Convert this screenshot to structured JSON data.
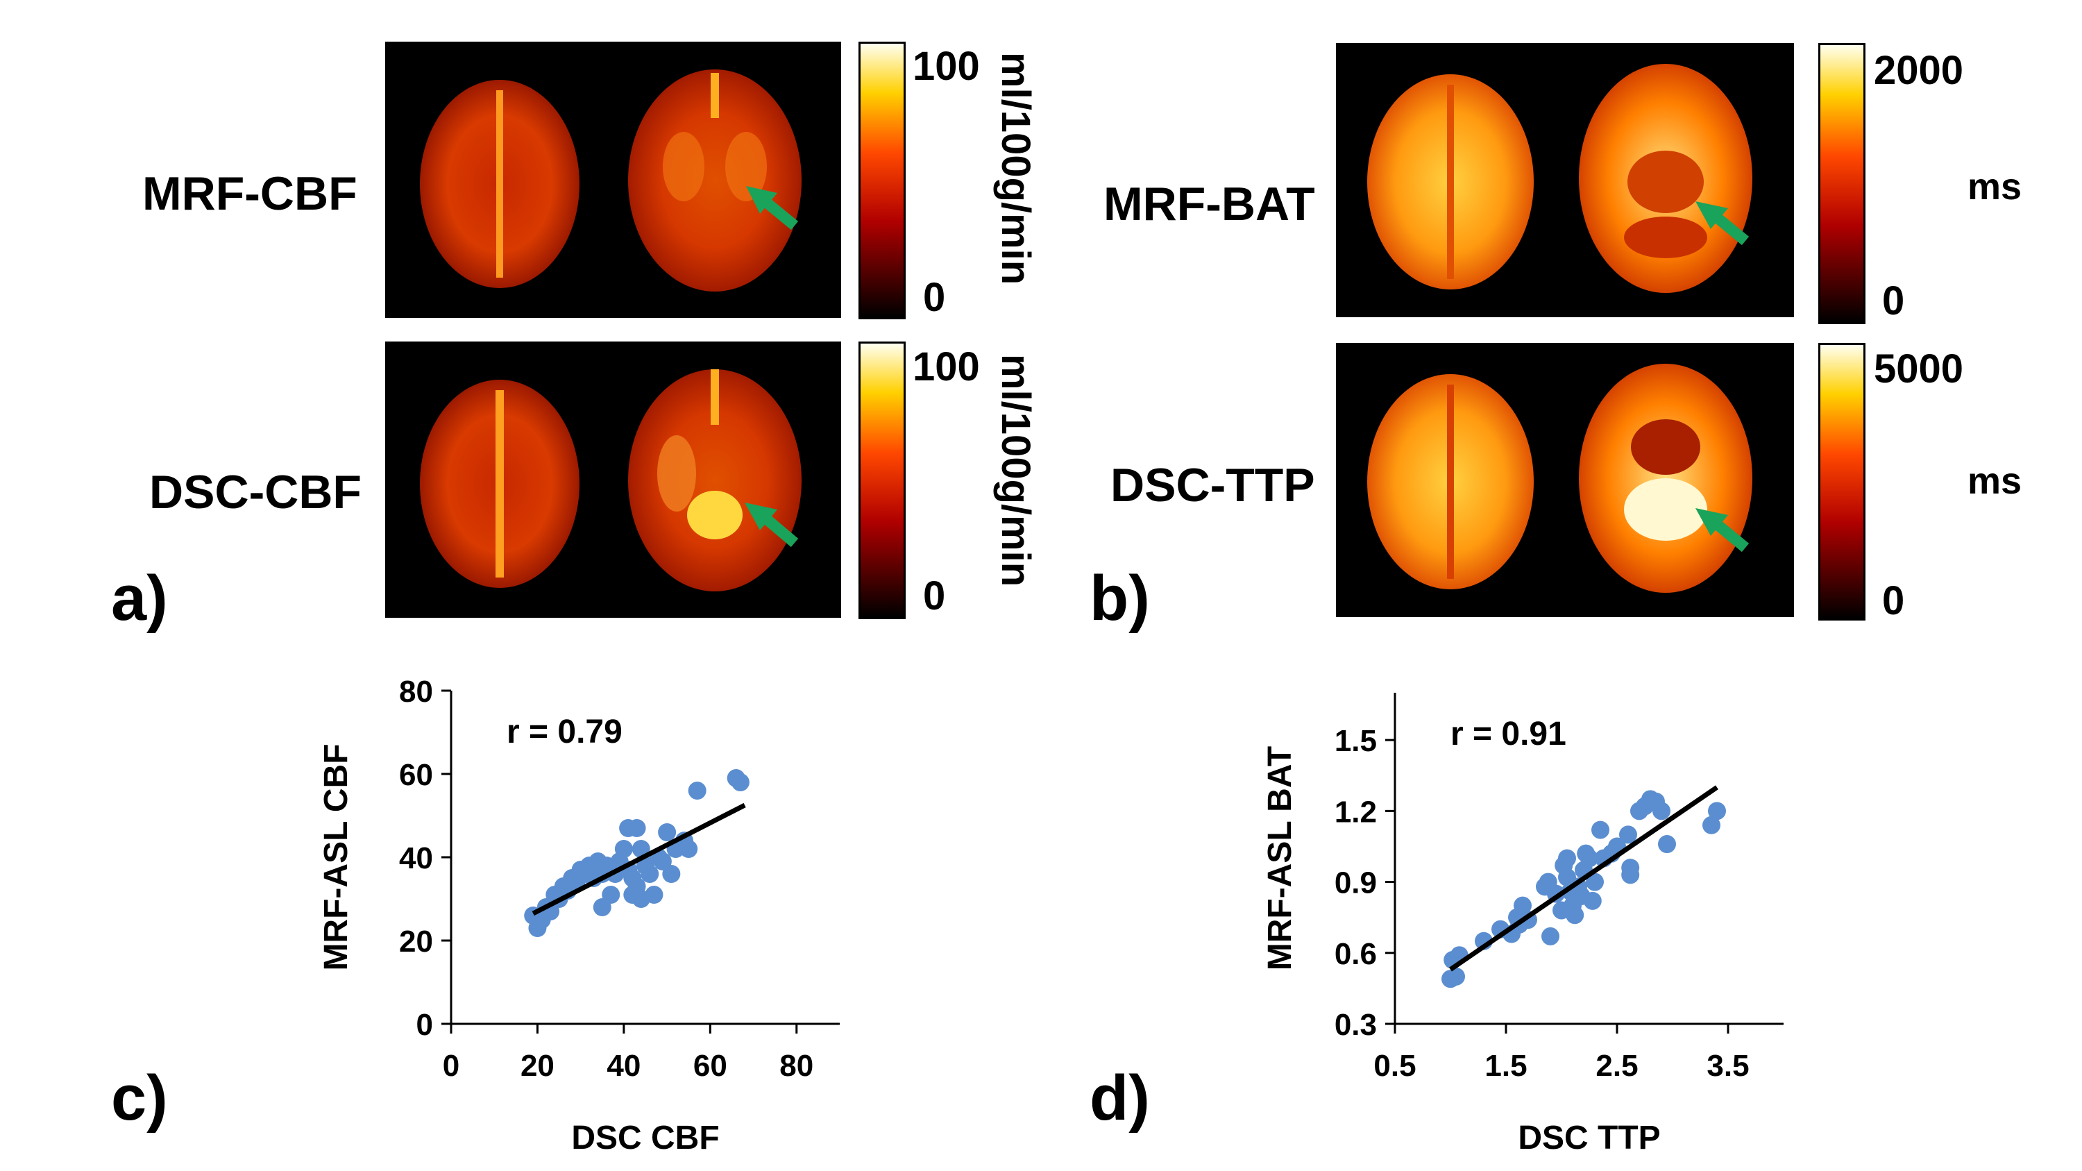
{
  "panel_a": {
    "label": "a)",
    "rows": [
      {
        "label": "MRF-CBF",
        "cb_max": "100",
        "cb_min": "0",
        "unit": "ml/100g/min"
      },
      {
        "label": "DSC-CBF",
        "cb_max": "100",
        "cb_min": "0",
        "unit": "ml/100g/min"
      }
    ]
  },
  "panel_b": {
    "label": "b)",
    "rows": [
      {
        "label": "MRF-BAT",
        "cb_max": "2000",
        "cb_min": "0",
        "unit": "ms"
      },
      {
        "label": "DSC-TTP",
        "cb_max": "5000",
        "cb_min": "0",
        "unit": "ms"
      }
    ]
  },
  "panel_c": {
    "label": "c)"
  },
  "panel_d": {
    "label": "d)"
  },
  "colors": {
    "point": "#5b8ed0",
    "arrow": "#1aa35a",
    "fit": "#000000"
  },
  "chart_data": [
    {
      "type": "scatter",
      "panel": "c",
      "xlabel": "DSC CBF",
      "ylabel": "MRF-ASL CBF",
      "annotation": "r = 0.79",
      "xlim": [
        0,
        90
      ],
      "ylim": [
        0,
        80
      ],
      "xticks": [
        0,
        20,
        40,
        60,
        80
      ],
      "yticks": [
        0,
        20,
        40,
        60,
        80
      ],
      "fit": {
        "x0": 19,
        "y0": 26.5,
        "x1": 68,
        "y1": 52.5
      },
      "points": [
        [
          19,
          26
        ],
        [
          20,
          23
        ],
        [
          21,
          25
        ],
        [
          22,
          28
        ],
        [
          23,
          27
        ],
        [
          24,
          31
        ],
        [
          25,
          30
        ],
        [
          26,
          33
        ],
        [
          27,
          32
        ],
        [
          28,
          35
        ],
        [
          29,
          34
        ],
        [
          30,
          37
        ],
        [
          31,
          36
        ],
        [
          32,
          38
        ],
        [
          33,
          35
        ],
        [
          34,
          39
        ],
        [
          35,
          36
        ],
        [
          35,
          28
        ],
        [
          36,
          38
        ],
        [
          37,
          31
        ],
        [
          38,
          36
        ],
        [
          39,
          39
        ],
        [
          40,
          42
        ],
        [
          41,
          47
        ],
        [
          41,
          37
        ],
        [
          42,
          35
        ],
        [
          42,
          31
        ],
        [
          43,
          33
        ],
        [
          43,
          47
        ],
        [
          44,
          42
        ],
        [
          44,
          30
        ],
        [
          45,
          38
        ],
        [
          46,
          36
        ],
        [
          47,
          31
        ],
        [
          48,
          40
        ],
        [
          49,
          39
        ],
        [
          50,
          46
        ],
        [
          51,
          36
        ],
        [
          52,
          42
        ],
        [
          54,
          44
        ],
        [
          55,
          42
        ],
        [
          57,
          56
        ],
        [
          66,
          59
        ],
        [
          67,
          58
        ]
      ]
    },
    {
      "type": "scatter",
      "panel": "d",
      "xlabel": "DSC TTP",
      "ylabel": "MRF-ASL BAT",
      "annotation": "r = 0.91",
      "xlim": [
        0.5,
        4.0
      ],
      "ylim": [
        0.3,
        1.7
      ],
      "xticks": [
        0.5,
        1.5,
        2.5,
        3.5
      ],
      "yticks": [
        0.3,
        0.6,
        0.9,
        1.2,
        1.5
      ],
      "fit": {
        "x0": 1.0,
        "y0": 0.53,
        "x1": 3.4,
        "y1": 1.3
      },
      "points": [
        [
          1.0,
          0.49
        ],
        [
          1.02,
          0.57
        ],
        [
          1.05,
          0.5
        ],
        [
          1.08,
          0.59
        ],
        [
          1.3,
          0.65
        ],
        [
          1.45,
          0.7
        ],
        [
          1.55,
          0.68
        ],
        [
          1.6,
          0.75
        ],
        [
          1.62,
          0.72
        ],
        [
          1.65,
          0.8
        ],
        [
          1.7,
          0.74
        ],
        [
          1.85,
          0.88
        ],
        [
          1.88,
          0.9
        ],
        [
          1.9,
          0.67
        ],
        [
          1.95,
          0.85
        ],
        [
          2.0,
          0.78
        ],
        [
          2.02,
          0.97
        ],
        [
          2.05,
          1.0
        ],
        [
          2.05,
          0.92
        ],
        [
          2.08,
          0.86
        ],
        [
          2.1,
          0.8
        ],
        [
          2.12,
          0.76
        ],
        [
          2.15,
          0.88
        ],
        [
          2.18,
          0.84
        ],
        [
          2.2,
          0.95
        ],
        [
          2.22,
          1.02
        ],
        [
          2.25,
          1.0
        ],
        [
          2.28,
          0.82
        ],
        [
          2.3,
          0.9
        ],
        [
          2.35,
          1.12
        ],
        [
          2.38,
          1.0
        ],
        [
          2.45,
          1.02
        ],
        [
          2.5,
          1.05
        ],
        [
          2.6,
          1.1
        ],
        [
          2.62,
          0.96
        ],
        [
          2.62,
          0.93
        ],
        [
          2.7,
          1.2
        ],
        [
          2.75,
          1.22
        ],
        [
          2.8,
          1.25
        ],
        [
          2.85,
          1.24
        ],
        [
          2.9,
          1.2
        ],
        [
          2.95,
          1.06
        ],
        [
          3.35,
          1.14
        ],
        [
          3.4,
          1.2
        ]
      ]
    }
  ]
}
